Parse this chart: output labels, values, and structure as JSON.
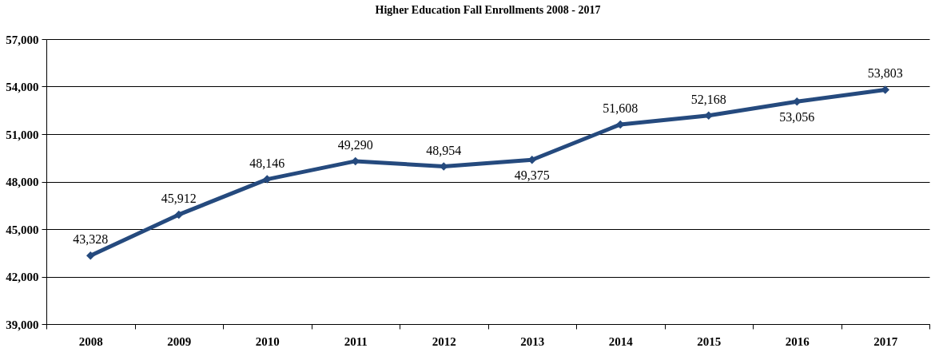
{
  "chart_data": {
    "type": "line",
    "title": "Higher Education Fall Enrollments 2008 - 2017",
    "categories": [
      "2008",
      "2009",
      "2010",
      "2011",
      "2012",
      "2013",
      "2014",
      "2015",
      "2016",
      "2017"
    ],
    "series": [
      {
        "color": "#254a7e",
        "values": [
          43328,
          45912,
          48146,
          49290,
          48954,
          49375,
          51608,
          52168,
          53056,
          53803
        ],
        "value_labels": [
          "43,328",
          "45,912",
          "48,146",
          "49,290",
          "48,954",
          "49,375",
          "51,608",
          "52,168",
          "53,056",
          "53,803"
        ]
      }
    ],
    "ylim": [
      39000,
      57000
    ],
    "yticks": [
      {
        "value": 39000,
        "label": "39,000"
      },
      {
        "value": 42000,
        "label": "42,000"
      },
      {
        "value": 45000,
        "label": "45,000"
      },
      {
        "value": 48000,
        "label": "48,000"
      },
      {
        "value": 51000,
        "label": "51,000"
      },
      {
        "value": 54000,
        "label": "54,000"
      },
      {
        "value": 57000,
        "label": "57,000"
      }
    ],
    "grid": "y",
    "marker": "diamond",
    "line_style": "solid"
  }
}
